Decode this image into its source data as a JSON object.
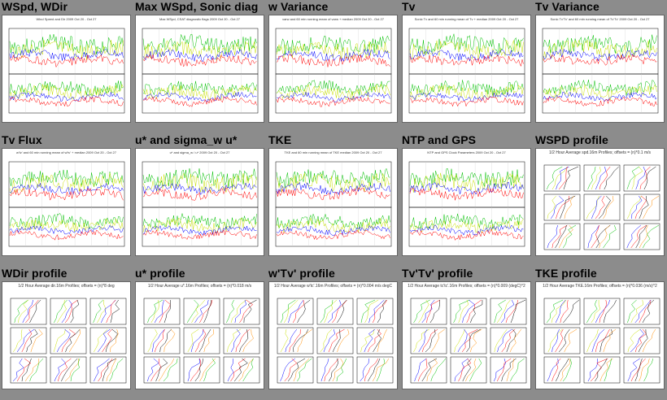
{
  "colors": {
    "background": "#8c8c8c",
    "thumb": "#ffffff"
  },
  "plots": [
    {
      "title": "WSpd, WDir",
      "kind": "ts2",
      "caption": "Wind Speed and Dir  2009 Oct 20 - Oct 27"
    },
    {
      "title": "Max WSpd, Sonic diag",
      "kind": "ts2",
      "caption": "Max WSpd, CSAT diagnostic flags  2009 Oct 20 - Oct 27"
    },
    {
      "title": "w Variance",
      "kind": "ts2",
      "caption": "varw and 60 min running mean of varw + median 2009 Oct 20 - Oct 27"
    },
    {
      "title": "Tv",
      "kind": "ts2",
      "caption": "Sonic Tv and 60 min running mean of Tv + median 2009 Oct 20 - Oct 27"
    },
    {
      "title": "Tv Variance",
      "kind": "ts2",
      "caption": "Sonic Tv'Tv' and 60 min running mean of Tv'Tv' 2009 Oct 20 - Oct 27"
    },
    {
      "title": "Tv Flux",
      "kind": "ts2",
      "caption": "w'tv' and 60 min running mean of w'tv' + median 2009 Oct 20 - Oct 27"
    },
    {
      "title": "u* and sigma_w u*",
      "kind": "ts2",
      "caption": "u* and sigma_w / u*  2009 Oct 20 - Oct 27"
    },
    {
      "title": "TKE",
      "kind": "ts2",
      "caption": "TKE and 60 min running mean of TKE median 2009 Oct 20 - Oct 27"
    },
    {
      "title": "NTP and GPS",
      "kind": "ts2",
      "caption": "NTP and GPS Clock Parameters 2009 Oct 20 - Oct 27"
    },
    {
      "title": "WSPD profile",
      "kind": "prof",
      "caption": "1/2 Hour Average spd.16m Profiles; offsets = (n)*0.1 m/s"
    },
    {
      "title": "WDir profile",
      "kind": "prof",
      "caption": "1/2 Hour Average dir.16m Profiles; offsets = (n)*8 deg"
    },
    {
      "title": "u* profile",
      "kind": "prof",
      "caption": "1/2 Hour Average u*.16m Profiles; offsets = (n)*0.018 m/s"
    },
    {
      "title": "w'Tv' profile",
      "kind": "prof",
      "caption": "1/2 Hour Average w'tc'.16m Profiles; offsets = (n)*0.004 m/s degC"
    },
    {
      "title": "Tv'Tv' profile",
      "kind": "prof",
      "caption": "1/2 Hour Average tc'tc'.16m Profiles; offsets = (n)*0.009 (degC)^2"
    },
    {
      "title": "TKE profile",
      "kind": "prof",
      "caption": "1/2 Hour Average TKE.16m Profiles; offsets = (n)*0.036 (m/s)^2"
    }
  ]
}
